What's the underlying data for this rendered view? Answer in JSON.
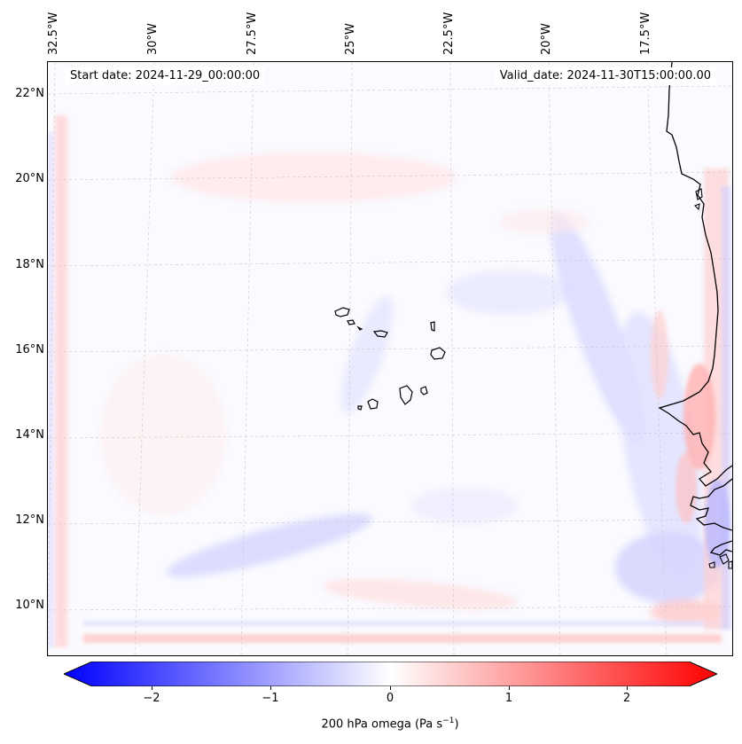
{
  "map": {
    "start_label": "Start date: 2024-11-29_00:00:00",
    "valid_label": "Valid_date: 2024-11-30T15:00:00.00",
    "longitude_labels": [
      "32.5°W",
      "30°W",
      "27.5°W",
      "25°W",
      "22.5°W",
      "20°W",
      "17.5°W"
    ],
    "latitude_labels": [
      "22°N",
      "20°N",
      "18°N",
      "16°N",
      "14°N",
      "12°N",
      "10°N"
    ],
    "colorbar": {
      "label_prefix": "200 hPa omega (Pa s",
      "label_exp": "−1",
      "label_suffix": ")",
      "ticks": [
        "−2",
        "−1",
        "0",
        "1",
        "2"
      ],
      "colors": {
        "negative": "#0000ff",
        "zero": "#ffffff",
        "positive": "#ff0000"
      },
      "range": [
        -2.5,
        2.5
      ]
    },
    "colors": {
      "coastline": "#000000",
      "gridline": "#c8c8c8",
      "background": "#fbfbff"
    }
  }
}
